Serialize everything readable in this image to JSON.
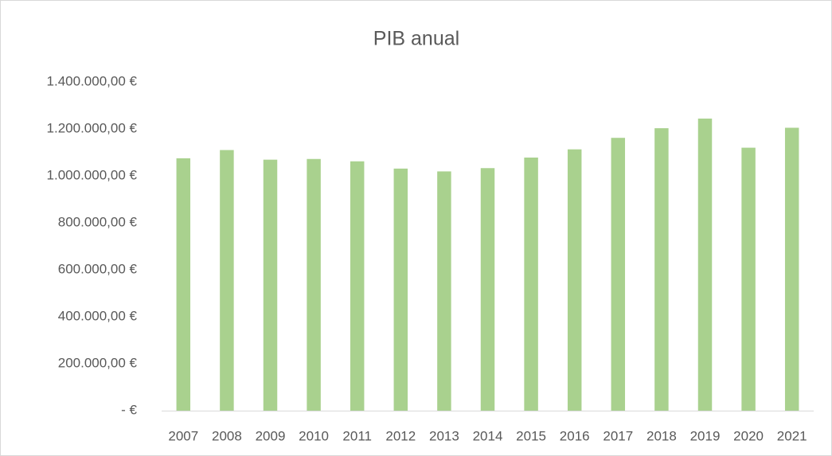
{
  "chart_data": {
    "type": "bar",
    "title": "PIB anual",
    "categories": [
      "2007",
      "2008",
      "2009",
      "2010",
      "2011",
      "2012",
      "2013",
      "2014",
      "2015",
      "2016",
      "2017",
      "2018",
      "2019",
      "2020",
      "2021"
    ],
    "values": [
      1075000,
      1110000,
      1069000,
      1072000,
      1062000,
      1031000,
      1019000,
      1033000,
      1078000,
      1113000,
      1162000,
      1203000,
      1244000,
      1120000,
      1205000
    ],
    "color": "#a9d18e",
    "ylim": [
      0,
      1400000
    ],
    "yticks": [
      {
        "value": 0,
        "label": "-   €"
      },
      {
        "value": 200000,
        "label": "200.000,00 €"
      },
      {
        "value": 400000,
        "label": "400.000,00 €"
      },
      {
        "value": 600000,
        "label": "600.000,00 €"
      },
      {
        "value": 800000,
        "label": "800.000,00 €"
      },
      {
        "value": 1000000,
        "label": "1.000.000,00 €"
      },
      {
        "value": 1200000,
        "label": "1.200.000,00 €"
      },
      {
        "value": 1400000,
        "label": "1.400.000,00 €"
      }
    ],
    "grid": false
  }
}
